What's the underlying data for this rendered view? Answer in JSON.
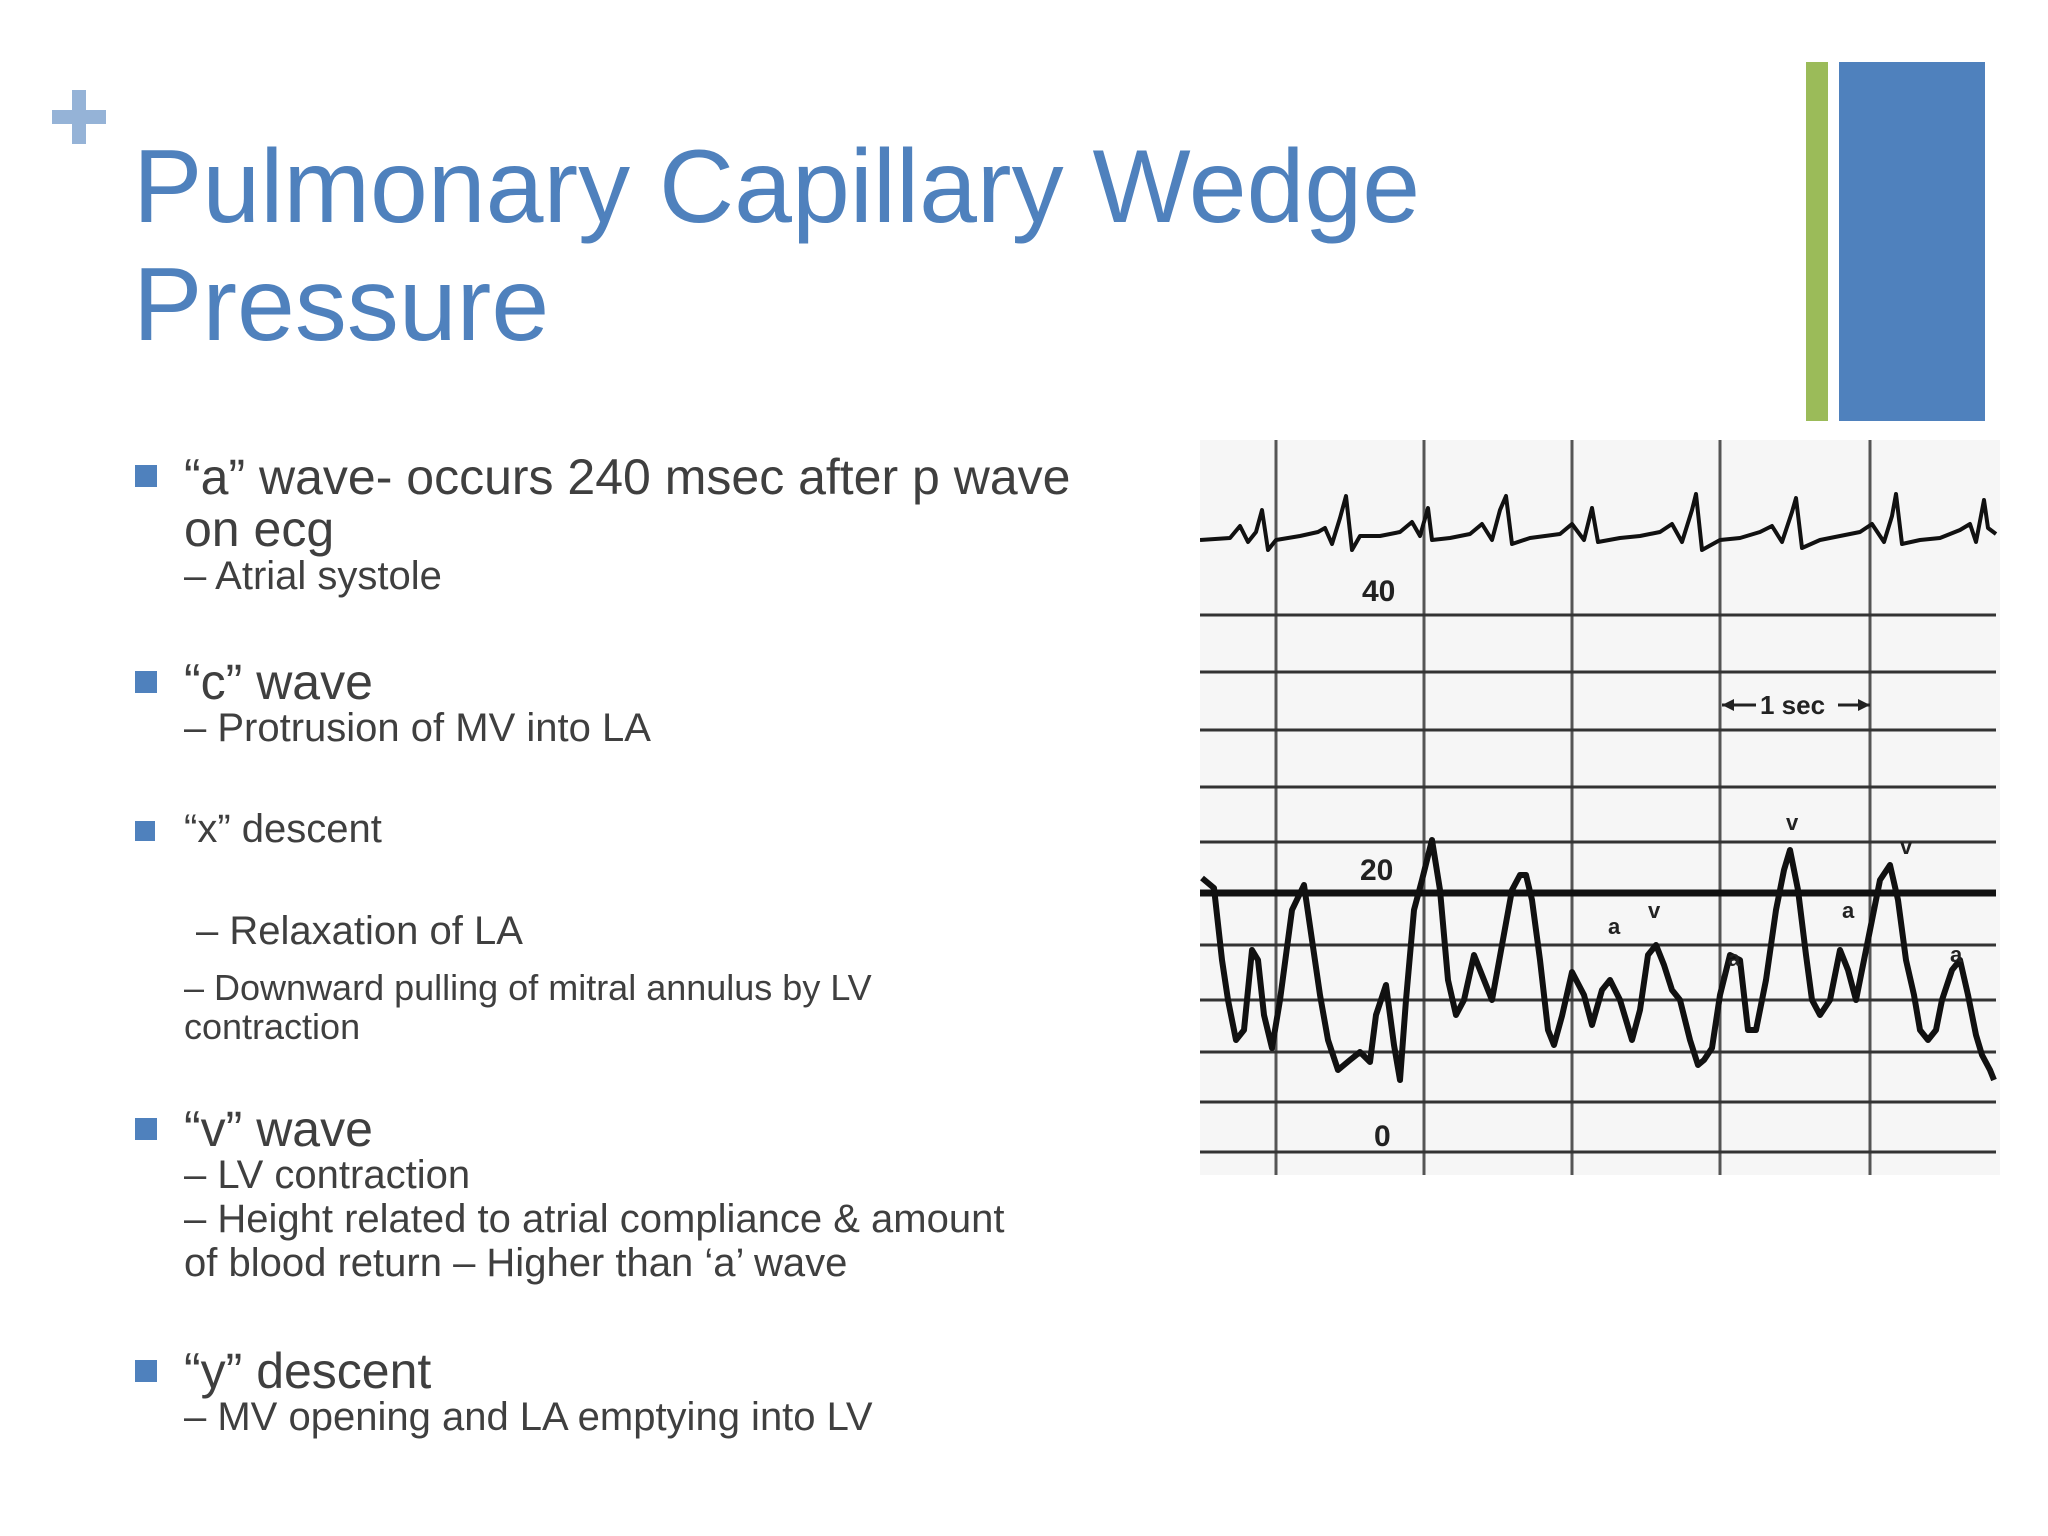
{
  "slide": {
    "title": "Pulmonary Capillary Wedge\nPressure",
    "colors": {
      "title": "#4f81bd",
      "bullet": "#4f81bd",
      "accent_green": "#9bbb59",
      "accent_blue": "#4f81bd",
      "plus_mark": "#95b3d7",
      "body_text": "#3f3f3f"
    }
  },
  "bullets": [
    {
      "heading_line1": "“a” wave- occurs 240 msec after p wave",
      "heading_line2": "on ecg",
      "sub": [
        "– Atrial systole"
      ]
    },
    {
      "heading_line1": "“c” wave",
      "sub": [
        "– Protrusion of MV into LA"
      ]
    },
    {
      "heading_line1": "“x” descent",
      "sub": [
        "–  Relaxation of LA",
        "–  Downward pulling of mitral annulus by LV",
        "contraction"
      ]
    },
    {
      "heading_line1": "“v” wave",
      "sub": [
        "– LV contraction",
        "– Height related to atrial compliance &  amount",
        "of blood return – Higher than ‘a’ wave"
      ]
    },
    {
      "heading_line1": "“y” descent",
      "sub": [
        "– MV opening and LA emptying into LV"
      ]
    }
  ],
  "figure": {
    "scale_labels": [
      "40",
      "20",
      "0"
    ],
    "time_marker": "1 sec",
    "wave_labels": [
      "a",
      "v",
      "a",
      "v",
      "a",
      "v",
      "a"
    ]
  }
}
